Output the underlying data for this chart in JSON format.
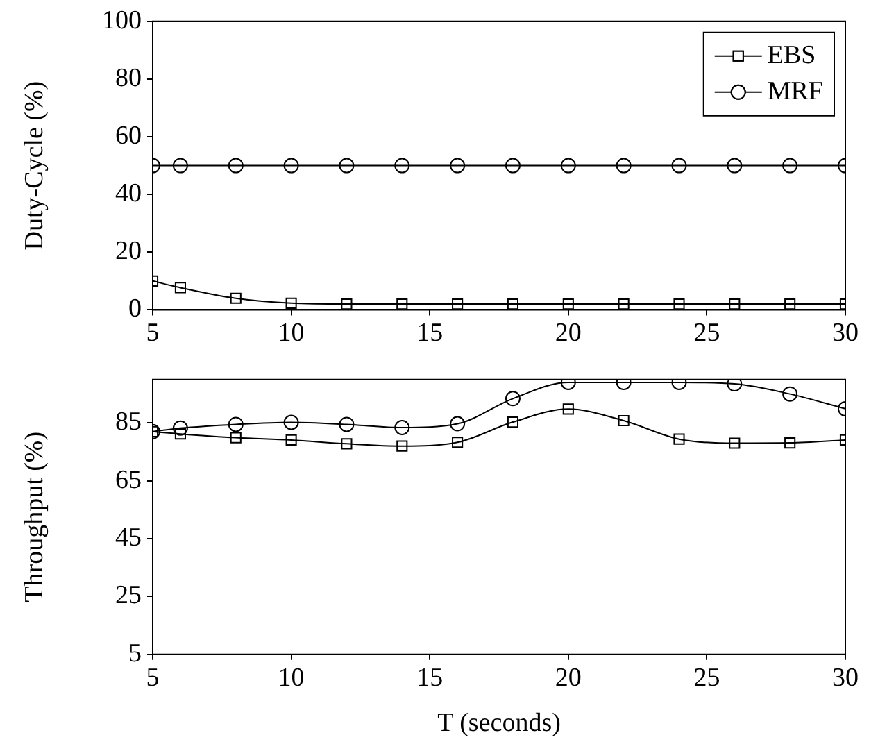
{
  "chart_data": [
    {
      "type": "line",
      "ylabel": "Duty-Cycle (%)",
      "xlim": [
        5,
        30
      ],
      "xticks": [
        5,
        10,
        15,
        20,
        25,
        30
      ],
      "ylim": [
        0,
        100
      ],
      "yticks": [
        0,
        20,
        40,
        60,
        80,
        100
      ],
      "grid": false,
      "legend": "top right",
      "line_style": "solid",
      "series": [
        {
          "name": "EBS",
          "color": "#000000",
          "marker": "square",
          "x": [
            5,
            6,
            8,
            10,
            12,
            14,
            16,
            18,
            20,
            22,
            24,
            26,
            28,
            30
          ],
          "values": [
            10,
            7.7,
            4,
            2.3,
            2,
            2,
            2,
            2,
            2,
            2,
            2,
            2,
            2,
            2
          ]
        },
        {
          "name": "MRF",
          "color": "#000000",
          "marker": "circle",
          "x": [
            5,
            6,
            8,
            10,
            12,
            14,
            16,
            18,
            20,
            22,
            24,
            26,
            28,
            30
          ],
          "values": [
            50,
            50,
            50,
            50,
            50,
            50,
            50,
            50,
            50,
            50,
            50,
            50,
            50,
            50
          ]
        }
      ]
    },
    {
      "type": "line",
      "xlabel": "T (seconds)",
      "ylabel": "Throughput (%)",
      "xlim": [
        5,
        30
      ],
      "xticks": [
        5,
        10,
        15,
        20,
        25,
        30
      ],
      "ylim": [
        5,
        100
      ],
      "yticks": [
        5,
        25,
        45,
        65,
        85
      ],
      "grid": false,
      "legend": false,
      "line_style": "solid",
      "series": [
        {
          "color": "#000000",
          "marker": "square",
          "x": [
            5,
            6,
            8,
            10,
            12,
            14,
            16,
            18,
            20,
            22,
            24,
            26,
            28,
            30
          ],
          "values": [
            82,
            81.2,
            79.9,
            79.1,
            77.8,
            77,
            78.3,
            85.3,
            89.8,
            85.8,
            79.4,
            78,
            78.1,
            79.1
          ]
        },
        {
          "color": "#000000",
          "marker": "circle",
          "x": [
            5,
            6,
            8,
            10,
            12,
            14,
            16,
            18,
            20,
            22,
            24,
            26,
            28,
            30
          ],
          "values": [
            82,
            83.2,
            84.5,
            85.2,
            84.5,
            83.4,
            84.7,
            93.4,
            99,
            99,
            99,
            98.5,
            95,
            89.9
          ]
        }
      ]
    }
  ]
}
